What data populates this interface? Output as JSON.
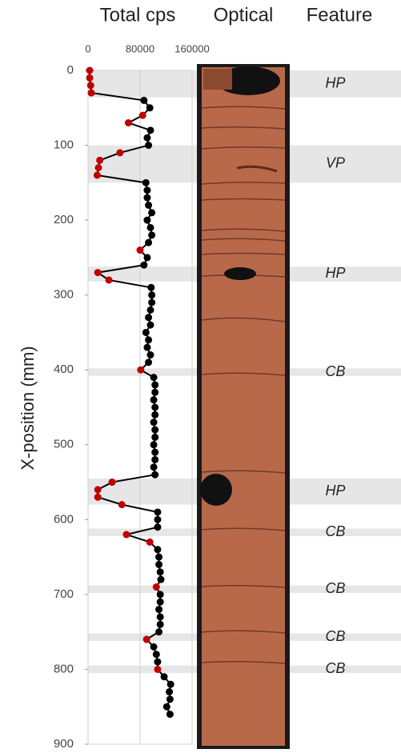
{
  "chart_data": {
    "type": "line",
    "column_titles": [
      "Total cps",
      "Optical",
      "Feature"
    ],
    "y_label": "X-position (mm)",
    "x": [
      0,
      10,
      20,
      30,
      40,
      50,
      60,
      70,
      80,
      90,
      100,
      110,
      120,
      130,
      140,
      150,
      160,
      170,
      180,
      190,
      200,
      210,
      220,
      230,
      240,
      250,
      260,
      270,
      280,
      290,
      300,
      310,
      320,
      330,
      340,
      350,
      360,
      370,
      380,
      390,
      400,
      410,
      420,
      430,
      440,
      450,
      460,
      470,
      480,
      490,
      500,
      510,
      520,
      530,
      540,
      550,
      560,
      570,
      580,
      590,
      600,
      610,
      620,
      630,
      640,
      650,
      660,
      670,
      680,
      690,
      700,
      710,
      720,
      730,
      740,
      750,
      760,
      770,
      780,
      790,
      800,
      810,
      820,
      830,
      840,
      850,
      860
    ],
    "values": [
      2500,
      2500,
      4000,
      5000,
      86000,
      95000,
      84000,
      62000,
      96000,
      91000,
      93000,
      49000,
      18000,
      16000,
      14000,
      89000,
      91000,
      91000,
      93000,
      98000,
      91000,
      96000,
      98000,
      93000,
      80000,
      91000,
      86000,
      15000,
      32000,
      97000,
      98000,
      98000,
      96000,
      93000,
      96000,
      89000,
      93000,
      91000,
      96000,
      93000,
      81000,
      101000,
      103000,
      103000,
      101000,
      103000,
      103000,
      101000,
      103000,
      103000,
      101000,
      103000,
      103000,
      101000,
      103000,
      37000,
      15000,
      15000,
      52000,
      107000,
      107000,
      107000,
      59000,
      95000,
      107000,
      109000,
      109000,
      111000,
      112000,
      105000,
      111000,
      111000,
      109000,
      111000,
      111000,
      109000,
      90000,
      101000,
      105000,
      107000,
      107000,
      117000,
      127000,
      125000,
      126000,
      121000,
      126000
    ],
    "marker_colors": [
      "#c00000",
      "#c00000",
      "#c00000",
      "#c00000",
      "#000000",
      "#000000",
      "#c00000",
      "#c00000",
      "#000000",
      "#000000",
      "#000000",
      "#c00000",
      "#c00000",
      "#c00000",
      "#c00000",
      "#000000",
      "#000000",
      "#000000",
      "#000000",
      "#000000",
      "#000000",
      "#000000",
      "#000000",
      "#000000",
      "#c00000",
      "#000000",
      "#000000",
      "#c00000",
      "#c00000",
      "#000000",
      "#000000",
      "#000000",
      "#000000",
      "#000000",
      "#000000",
      "#000000",
      "#000000",
      "#000000",
      "#000000",
      "#000000",
      "#c00000",
      "#000000",
      "#000000",
      "#000000",
      "#000000",
      "#000000",
      "#000000",
      "#000000",
      "#000000",
      "#000000",
      "#000000",
      "#000000",
      "#000000",
      "#000000",
      "#000000",
      "#c00000",
      "#c00000",
      "#c00000",
      "#c00000",
      "#000000",
      "#000000",
      "#000000",
      "#c00000",
      "#c00000",
      "#000000",
      "#000000",
      "#000000",
      "#000000",
      "#000000",
      "#c00000",
      "#000000",
      "#000000",
      "#000000",
      "#000000",
      "#000000",
      "#000000",
      "#c00000",
      "#000000",
      "#000000",
      "#000000",
      "#c00000",
      "#000000",
      "#000000",
      "#000000",
      "#000000",
      "#000000",
      "#000000"
    ],
    "line_color": "#000000",
    "xlim": [
      0,
      160000
    ],
    "xticks": [
      0,
      80000,
      160000
    ],
    "ylim": [
      0,
      900
    ],
    "yticks": [
      0,
      100,
      200,
      300,
      400,
      500,
      600,
      700,
      800,
      900
    ],
    "band_color": "#e6e6e6",
    "features": [
      {
        "label": "HP",
        "range": [
          0,
          36
        ]
      },
      {
        "label": "VP",
        "range": [
          100,
          150
        ]
      },
      {
        "label": "HP",
        "range": [
          262,
          282
        ]
      },
      {
        "label": "CB",
        "range": [
          398,
          408
        ]
      },
      {
        "label": "HP",
        "range": [
          545,
          580
        ]
      },
      {
        "label": "CB",
        "range": [
          612,
          622
        ]
      },
      {
        "label": "CB",
        "range": [
          688,
          698
        ]
      },
      {
        "label": "CB",
        "range": [
          752,
          762
        ]
      },
      {
        "label": "CB",
        "range": [
          795,
          805
        ]
      }
    ]
  }
}
